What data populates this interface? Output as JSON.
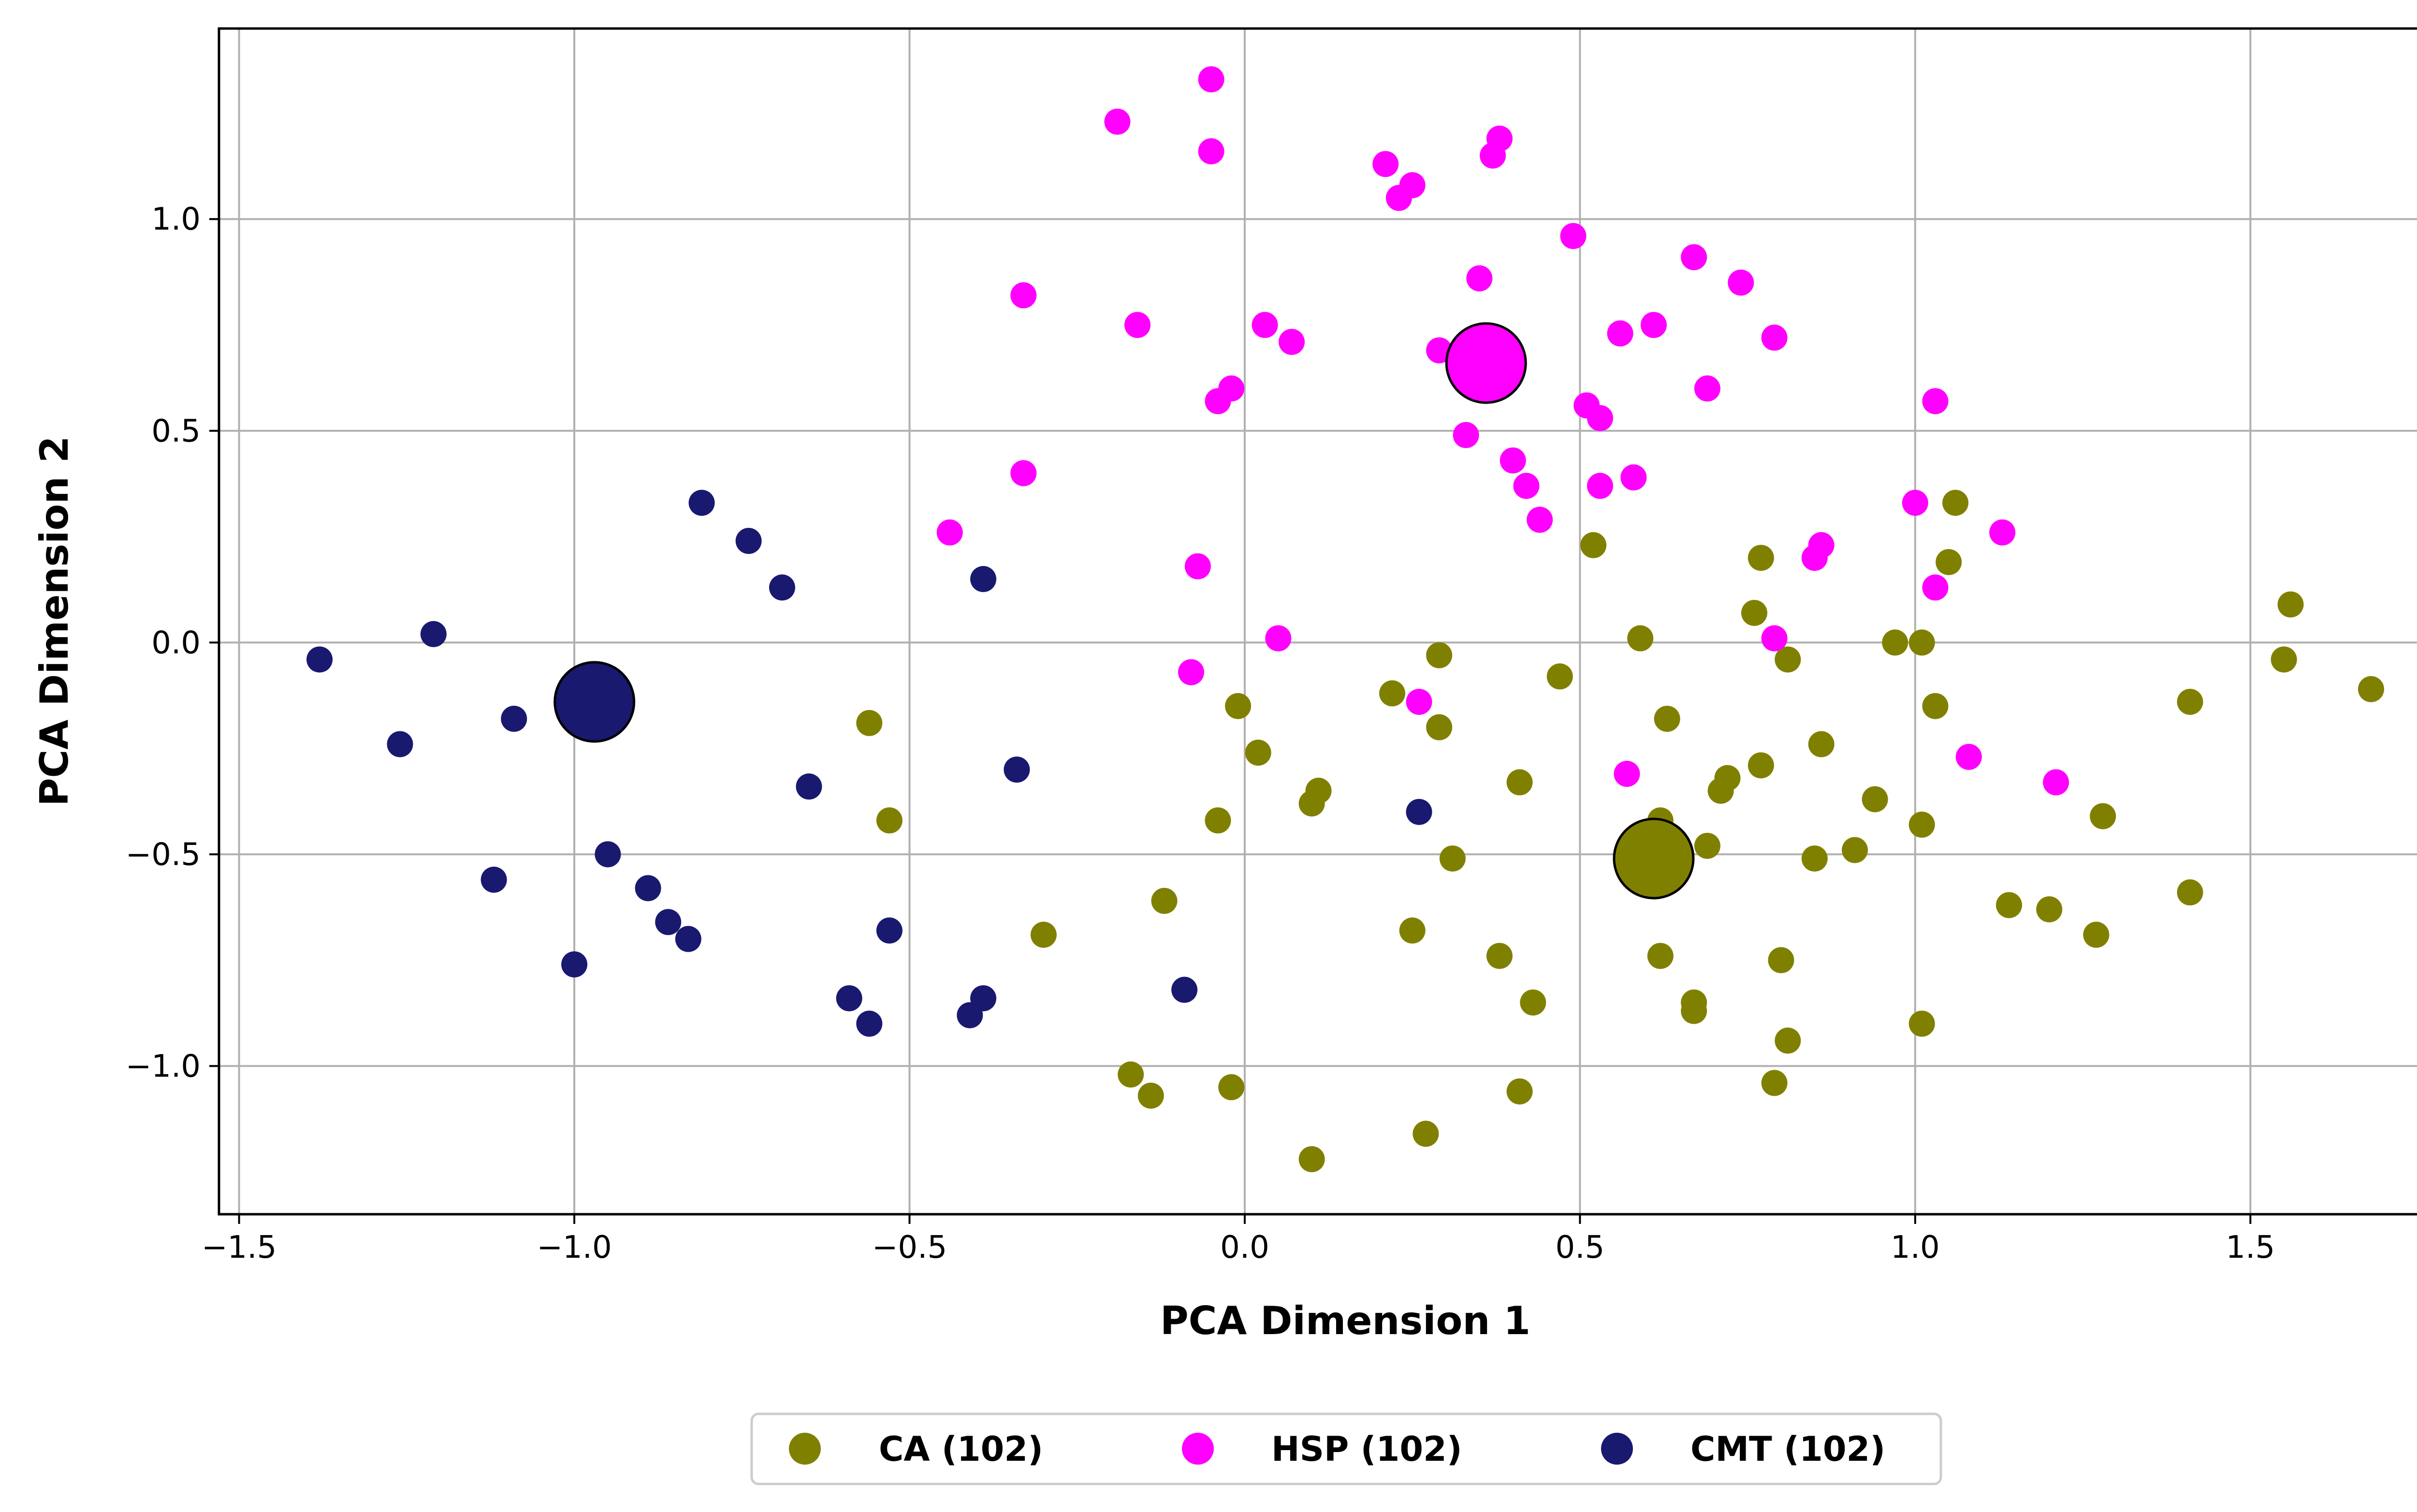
{
  "chart_data": {
    "type": "scatter",
    "title": "",
    "xlabel": "PCA Dimension 1",
    "ylabel": "PCA Dimension 2",
    "xlim": [
      -1.53,
      1.83
    ],
    "ylim": [
      -1.35,
      1.45
    ],
    "xticks": [
      -1.5,
      -1.0,
      -0.5,
      0.0,
      0.5,
      1.0,
      1.5
    ],
    "xtick_labels": [
      "−1.5",
      "−1.0",
      "−0.5",
      "0.0",
      "0.5",
      "1.0",
      "1.5"
    ],
    "yticks": [
      -1.0,
      -0.5,
      0.0,
      0.5,
      1.0
    ],
    "ytick_labels": [
      "−1.0",
      "−0.5",
      "0.0",
      "0.5",
      "1.0"
    ],
    "grid": true,
    "legend": {
      "placement": "bottom-center-outside",
      "columns": 3
    },
    "series": [
      {
        "name": "CA (102)",
        "color": "#808000",
        "centroid": [
          0.61,
          -0.51
        ],
        "points": [
          [
            -0.56,
            -0.19
          ],
          [
            -0.53,
            -0.42
          ],
          [
            -0.3,
            -0.69
          ],
          [
            -0.17,
            -1.02
          ],
          [
            -0.14,
            -1.07
          ],
          [
            -0.12,
            -0.61
          ],
          [
            -0.04,
            -0.42
          ],
          [
            -0.01,
            -0.15
          ],
          [
            -0.02,
            -1.05
          ],
          [
            0.02,
            -0.26
          ],
          [
            0.1,
            -0.38
          ],
          [
            0.11,
            -0.35
          ],
          [
            0.1,
            -1.22
          ],
          [
            0.22,
            -0.12
          ],
          [
            0.25,
            -0.68
          ],
          [
            0.27,
            -1.16
          ],
          [
            0.29,
            -0.03
          ],
          [
            0.29,
            -0.2
          ],
          [
            0.31,
            -0.51
          ],
          [
            0.38,
            -0.74
          ],
          [
            0.41,
            -0.33
          ],
          [
            0.41,
            -1.06
          ],
          [
            0.43,
            -0.85
          ],
          [
            0.47,
            -0.08
          ],
          [
            0.52,
            0.23
          ],
          [
            0.59,
            0.01
          ],
          [
            0.62,
            -0.74
          ],
          [
            0.62,
            -0.42
          ],
          [
            0.63,
            -0.18
          ],
          [
            0.67,
            -0.85
          ],
          [
            0.67,
            -0.87
          ],
          [
            0.69,
            -0.48
          ],
          [
            0.71,
            -0.35
          ],
          [
            0.72,
            -0.32
          ],
          [
            0.76,
            0.07
          ],
          [
            0.77,
            0.2
          ],
          [
            0.77,
            -0.29
          ],
          [
            0.79,
            -1.04
          ],
          [
            0.8,
            -0.75
          ],
          [
            0.81,
            -0.04
          ],
          [
            0.81,
            -0.94
          ],
          [
            0.85,
            -0.51
          ],
          [
            0.86,
            -0.24
          ],
          [
            0.91,
            -0.49
          ],
          [
            0.94,
            -0.37
          ],
          [
            0.97,
            0.0
          ],
          [
            1.01,
            0.0
          ],
          [
            1.01,
            -0.43
          ],
          [
            1.01,
            -0.9
          ],
          [
            1.03,
            -0.15
          ],
          [
            1.05,
            0.19
          ],
          [
            1.06,
            0.33
          ],
          [
            1.14,
            -0.62
          ],
          [
            1.2,
            -0.63
          ],
          [
            1.27,
            -0.69
          ],
          [
            1.28,
            -0.41
          ],
          [
            1.41,
            -0.59
          ],
          [
            1.41,
            -0.14
          ],
          [
            1.55,
            -0.04
          ],
          [
            1.56,
            0.09
          ],
          [
            1.68,
            -0.11
          ]
        ]
      },
      {
        "name": "HSP (102)",
        "color": "#ff00ff",
        "centroid": [
          0.36,
          0.66
        ],
        "points": [
          [
            -0.44,
            0.26
          ],
          [
            -0.33,
            0.4
          ],
          [
            -0.33,
            0.82
          ],
          [
            -0.19,
            1.23
          ],
          [
            -0.16,
            0.75
          ],
          [
            -0.08,
            -0.07
          ],
          [
            -0.07,
            0.18
          ],
          [
            -0.05,
            1.33
          ],
          [
            -0.05,
            1.16
          ],
          [
            -0.04,
            0.57
          ],
          [
            -0.02,
            0.6
          ],
          [
            0.03,
            0.75
          ],
          [
            0.05,
            0.01
          ],
          [
            0.07,
            0.71
          ],
          [
            0.21,
            1.13
          ],
          [
            0.23,
            1.05
          ],
          [
            0.25,
            1.08
          ],
          [
            0.26,
            -0.14
          ],
          [
            0.29,
            0.69
          ],
          [
            0.33,
            0.49
          ],
          [
            0.35,
            0.86
          ],
          [
            0.37,
            1.15
          ],
          [
            0.38,
            1.19
          ],
          [
            0.4,
            0.43
          ],
          [
            0.42,
            0.37
          ],
          [
            0.44,
            0.29
          ],
          [
            0.49,
            0.96
          ],
          [
            0.51,
            0.56
          ],
          [
            0.53,
            0.53
          ],
          [
            0.53,
            0.37
          ],
          [
            0.56,
            0.73
          ],
          [
            0.57,
            -0.31
          ],
          [
            0.58,
            0.39
          ],
          [
            0.61,
            0.75
          ],
          [
            0.67,
            0.91
          ],
          [
            0.69,
            0.6
          ],
          [
            0.74,
            0.85
          ],
          [
            0.79,
            0.01
          ],
          [
            0.79,
            0.72
          ],
          [
            0.85,
            0.2
          ],
          [
            0.86,
            0.23
          ],
          [
            1.0,
            0.33
          ],
          [
            1.03,
            0.13
          ],
          [
            1.03,
            0.57
          ],
          [
            1.08,
            -0.27
          ],
          [
            1.13,
            0.26
          ],
          [
            1.21,
            -0.33
          ]
        ]
      },
      {
        "name": "CMT (102)",
        "color": "#191970",
        "centroid": [
          -0.97,
          -0.14
        ],
        "points": [
          [
            -1.38,
            -0.04
          ],
          [
            -1.26,
            -0.24
          ],
          [
            -1.21,
            0.02
          ],
          [
            -1.12,
            -0.56
          ],
          [
            -1.09,
            -0.18
          ],
          [
            -1.0,
            -0.76
          ],
          [
            -0.95,
            -0.5
          ],
          [
            -0.89,
            -0.58
          ],
          [
            -0.86,
            -0.66
          ],
          [
            -0.83,
            -0.7
          ],
          [
            -0.81,
            0.33
          ],
          [
            -0.74,
            0.24
          ],
          [
            -0.69,
            0.13
          ],
          [
            -0.65,
            -0.34
          ],
          [
            -0.59,
            -0.84
          ],
          [
            -0.56,
            -0.9
          ],
          [
            -0.53,
            -0.68
          ],
          [
            -0.41,
            -0.88
          ],
          [
            -0.39,
            -0.84
          ],
          [
            -0.39,
            0.15
          ],
          [
            -0.34,
            -0.3
          ],
          [
            -0.09,
            -0.82
          ],
          [
            0.26,
            -0.4
          ]
        ]
      }
    ]
  }
}
